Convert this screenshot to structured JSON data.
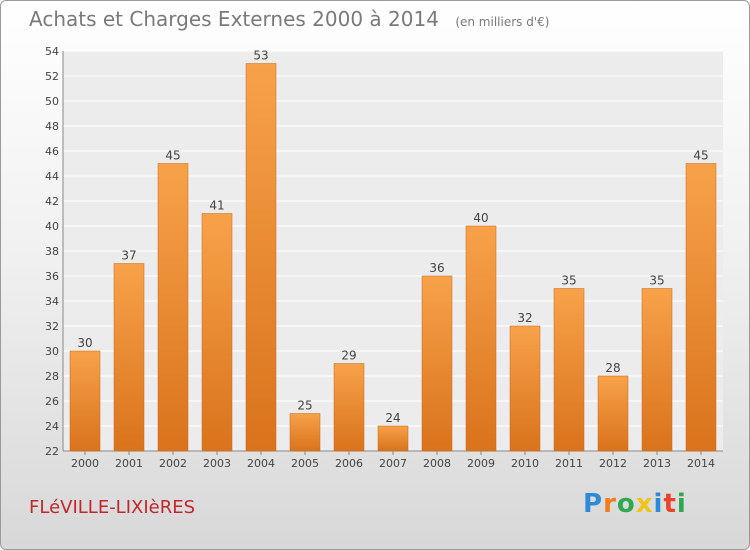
{
  "chart_data": {
    "type": "bar",
    "title": "Achats et Charges Externes 2000 à 2014",
    "subtitle": "(en milliers d'€)",
    "categories": [
      "2000",
      "2001",
      "2002",
      "2003",
      "2004",
      "2005",
      "2006",
      "2007",
      "2008",
      "2009",
      "2010",
      "2011",
      "2012",
      "2013",
      "2014"
    ],
    "values": [
      30,
      37,
      45,
      41,
      53,
      25,
      29,
      24,
      36,
      40,
      32,
      35,
      28,
      35,
      45
    ],
    "yticks": [
      22,
      24,
      26,
      28,
      30,
      32,
      34,
      36,
      38,
      40,
      42,
      44,
      46,
      48,
      50,
      52,
      54
    ],
    "ylim": [
      22,
      54
    ],
    "grid": true,
    "bar_color_top": "#f7a24a",
    "bar_color_bottom": "#d9731c"
  },
  "place_name": "FLéVILLE-LIXIèRES",
  "logo": {
    "letters": [
      "P",
      "r",
      "o",
      "x",
      "i",
      "t",
      "i"
    ],
    "colors": [
      "#2f8ad6",
      "#f07e1e",
      "#2fa84f",
      "#f0c419",
      "#2f8ad6",
      "#e8442b",
      "#2fa84f"
    ]
  },
  "colors": {
    "place_name": "#c0272d",
    "title": "#7a7a7a"
  }
}
